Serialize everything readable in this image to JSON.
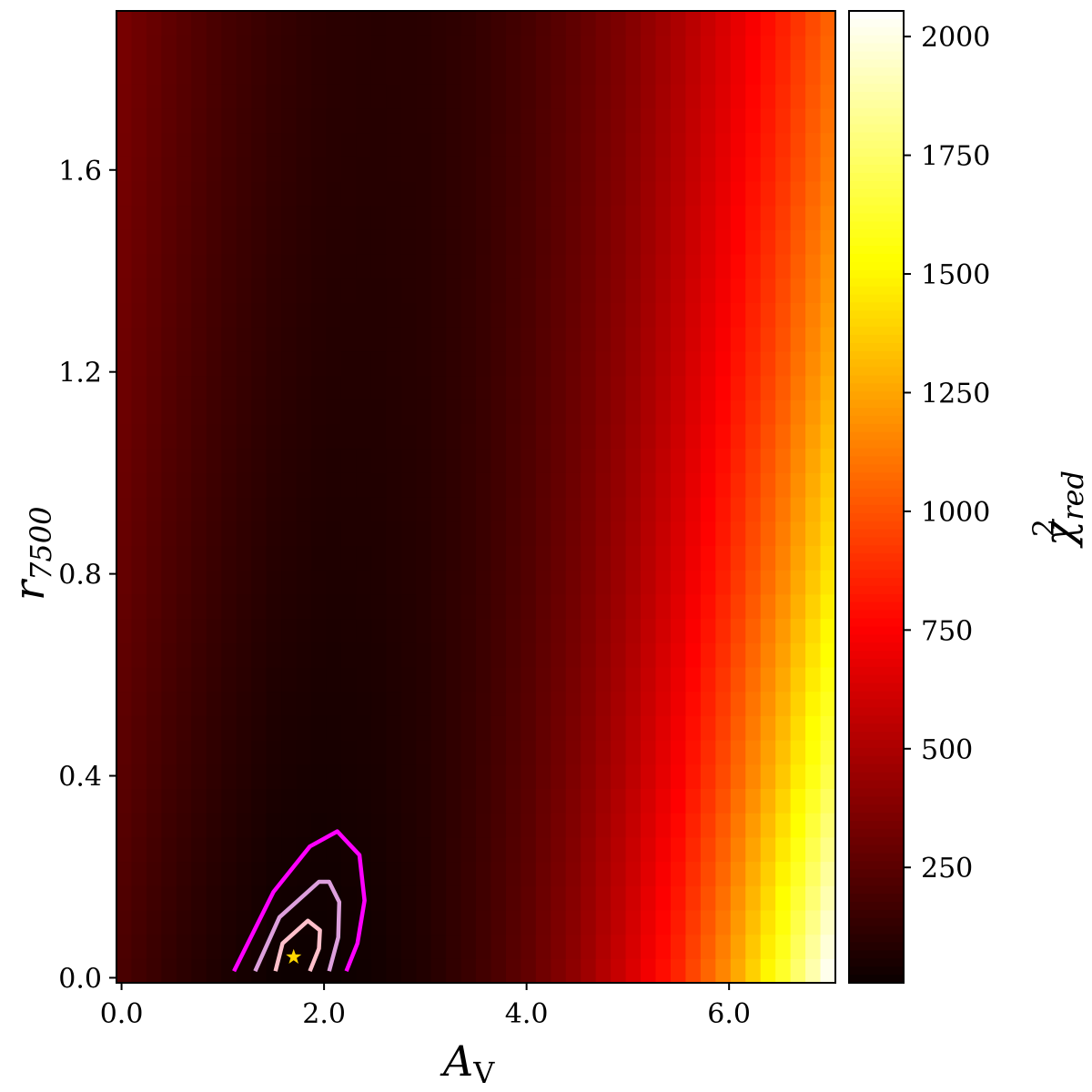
{
  "chart_data": {
    "type": "heatmap",
    "xlabel": "A",
    "xlabel_sub": "V",
    "ylabel": "r",
    "ylabel_sub": "7500",
    "colorbar_label": "χ",
    "colorbar_label_sup": "2",
    "colorbar_label_sub": "red",
    "colormap": "hot",
    "xlim": [
      -0.05,
      7.05
    ],
    "ylim": [
      -0.01,
      1.915
    ],
    "clim": [
      7,
      2054
    ],
    "x_ticks": [
      0,
      2,
      4,
      6
    ],
    "x_tick_labels": [
      "0.0",
      "2.0",
      "4.0",
      "6.0"
    ],
    "y_ticks": [
      0,
      0.4,
      0.8,
      1.2,
      1.6
    ],
    "y_tick_labels": [
      "0.0",
      "0.4",
      "0.8",
      "1.2",
      "1.6"
    ],
    "colorbar_ticks": [
      250,
      500,
      750,
      1000,
      1250,
      1500,
      1750,
      2000
    ],
    "colorbar_tick_labels": [
      "250",
      "500",
      "750",
      "1000",
      "1250",
      "1500",
      "1750",
      "2000"
    ],
    "grid": false,
    "grid_x": [
      0,
      0.5,
      1,
      1.5,
      2,
      2.5,
      3,
      3.5,
      4,
      4.5,
      5,
      5.5,
      6,
      6.5,
      7
    ],
    "grid_y": [
      0,
      0.4,
      0.8,
      1.2,
      1.6,
      1.9
    ],
    "values": [
      [
        200,
        120,
        60,
        15,
        10,
        30,
        80,
        160,
        270,
        420,
        620,
        870,
        1200,
        1600,
        2050
      ],
      [
        249,
        169,
        106,
        59,
        43,
        53,
        87,
        150,
        242,
        368,
        533,
        741,
        1008,
        1331,
        1700
      ],
      [
        284,
        204,
        138,
        90,
        67,
        69,
        92,
        142,
        222,
        330,
        470,
        648,
        870,
        1138,
        1450
      ],
      [
        309,
        229,
        161,
        113,
        84,
        81,
        96,
        137,
        208,
        303,
        425,
        581,
        771,
        999,
        1270
      ],
      [
        329,
        249,
        180,
        130,
        97,
        90,
        98,
        132,
        196,
        282,
        390,
        530,
        694,
        892,
        1130
      ],
      [
        340,
        260,
        190,
        140,
        105,
        95,
        100,
        130,
        190,
        270,
        370,
        500,
        650,
        830,
        1050
      ]
    ],
    "contours": [
      {
        "color": "#ff00ff",
        "points": [
          [
            1.11,
            0.013
          ],
          [
            1.5,
            0.17
          ],
          [
            1.86,
            0.26
          ],
          [
            2.13,
            0.29
          ],
          [
            2.35,
            0.243
          ],
          [
            2.4,
            0.153
          ],
          [
            2.33,
            0.068
          ],
          [
            2.22,
            0.013
          ]
        ]
      },
      {
        "color": "#dda0dd",
        "points": [
          [
            1.32,
            0.013
          ],
          [
            1.56,
            0.12
          ],
          [
            1.95,
            0.19
          ],
          [
            2.05,
            0.19
          ],
          [
            2.15,
            0.15
          ],
          [
            2.14,
            0.08
          ],
          [
            2.05,
            0.013
          ]
        ]
      },
      {
        "color": "#ffc0cb",
        "points": [
          [
            1.52,
            0.013
          ],
          [
            1.59,
            0.068
          ],
          [
            1.84,
            0.113
          ],
          [
            1.96,
            0.094
          ],
          [
            1.95,
            0.058
          ],
          [
            1.86,
            0.013
          ]
        ]
      }
    ],
    "best_fit": {
      "x": 1.7,
      "y": 0.041,
      "marker": "star",
      "color": "#ffd700"
    }
  }
}
